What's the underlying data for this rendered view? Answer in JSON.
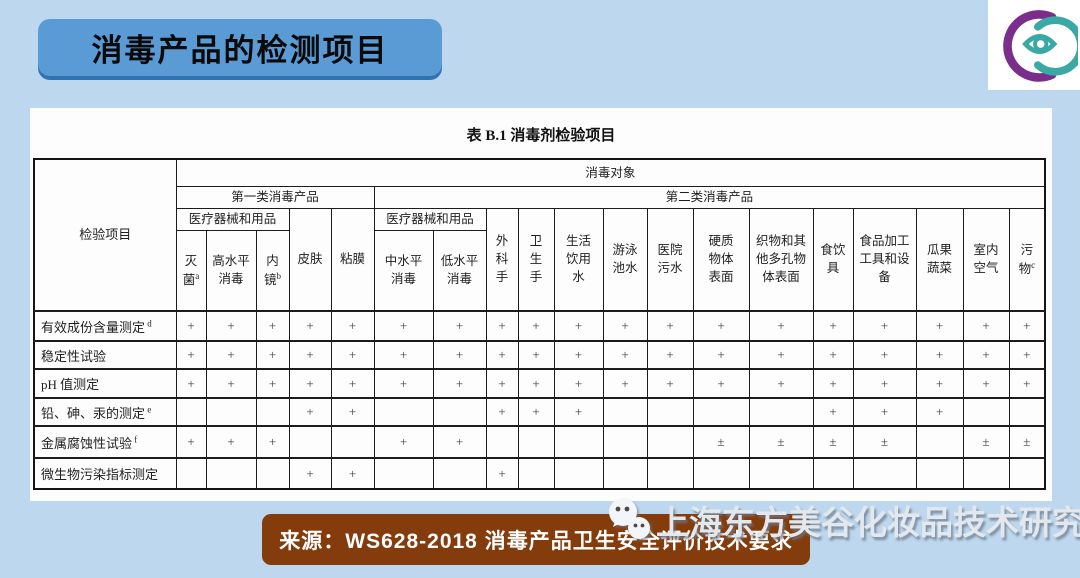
{
  "page": {
    "title_banner": "消毒产品的检测项目",
    "source_banner": "来源：WS628-2018 消毒产品卫生安全评价技术要求",
    "watermark": "上海东方美谷化妆品技术研究中心",
    "colors": {
      "background": "#bdd7ee",
      "title_banner_fill": "#5b9bd5",
      "title_banner_edge": "#2e74b5",
      "source_banner_fill": "#843c0c",
      "logo_purple": "#7b2d8b",
      "logo_teal": "#3aa8a4"
    }
  },
  "table": {
    "caption": "表 B.1 消毒剂检验项目",
    "corner_header": "检验项目",
    "top_header": "消毒对象",
    "groups": {
      "class1": "第一类消毒产品",
      "class2": "第二类消毒产品",
      "medical1": "医疗器械和用品",
      "medical2": "医疗器械和用品"
    },
    "columns": [
      {
        "label": "灭\n菌",
        "sup": "a"
      },
      {
        "label": "高水平\n消毒",
        "sup": ""
      },
      {
        "label": "内\n镜",
        "sup": "b"
      },
      {
        "label": "皮肤",
        "sup": ""
      },
      {
        "label": "粘膜",
        "sup": ""
      },
      {
        "label": "中水平\n消毒",
        "sup": ""
      },
      {
        "label": "低水平\n消毒",
        "sup": ""
      },
      {
        "label": "外\n科\n手",
        "sup": ""
      },
      {
        "label": "卫\n生\n手",
        "sup": ""
      },
      {
        "label": "生活\n饮用\n水",
        "sup": ""
      },
      {
        "label": "游泳\n池水",
        "sup": ""
      },
      {
        "label": "医院\n污水",
        "sup": ""
      },
      {
        "label": "硬质\n物体\n表面",
        "sup": ""
      },
      {
        "label": "织物和其\n他多孔物\n体表面",
        "sup": ""
      },
      {
        "label": "食饮\n具",
        "sup": ""
      },
      {
        "label": "食品加工\n工具和设\n备",
        "sup": ""
      },
      {
        "label": "瓜果\n蔬菜",
        "sup": ""
      },
      {
        "label": "室内\n空气",
        "sup": ""
      },
      {
        "label": "污\n物",
        "sup": "c"
      }
    ],
    "rows": [
      {
        "label": "有效成份含量测定",
        "sup": "d",
        "values": [
          "+",
          "+",
          "+",
          "+",
          "+",
          "+",
          "+",
          "+",
          "+",
          "+",
          "+",
          "+",
          "+",
          "+",
          "+",
          "+",
          "+",
          "+",
          "+"
        ]
      },
      {
        "label": "稳定性试验",
        "sup": "",
        "values": [
          "+",
          "+",
          "+",
          "+",
          "+",
          "+",
          "+",
          "+",
          "+",
          "+",
          "+",
          "+",
          "+",
          "+",
          "+",
          "+",
          "+",
          "+",
          "+"
        ]
      },
      {
        "label": "pH 值测定",
        "sup": "",
        "values": [
          "+",
          "+",
          "+",
          "+",
          "+",
          "+",
          "+",
          "+",
          "+",
          "+",
          "+",
          "+",
          "+",
          "+",
          "+",
          "+",
          "+",
          "+",
          "+"
        ]
      },
      {
        "label": "铅、砷、汞的测定",
        "sup": "e",
        "values": [
          "",
          "",
          "",
          "+",
          "+",
          "",
          "",
          "+",
          "+",
          "+",
          "",
          "",
          "",
          "",
          "+",
          "+",
          "+",
          "",
          ""
        ]
      },
      {
        "label": "金属腐蚀性试验",
        "sup": "f",
        "values": [
          "+",
          "+",
          "+",
          "",
          "",
          "+",
          "+",
          "",
          "",
          "",
          "",
          "",
          "±",
          "±",
          "±",
          "±",
          "",
          "±",
          "±"
        ]
      },
      {
        "label": "微生物污染指标测定",
        "sup": "",
        "values": [
          "",
          "",
          "",
          "+",
          "+",
          "",
          "",
          "+",
          "",
          "",
          "",
          "",
          "",
          "",
          "",
          "",
          "",
          "",
          ""
        ]
      }
    ]
  }
}
